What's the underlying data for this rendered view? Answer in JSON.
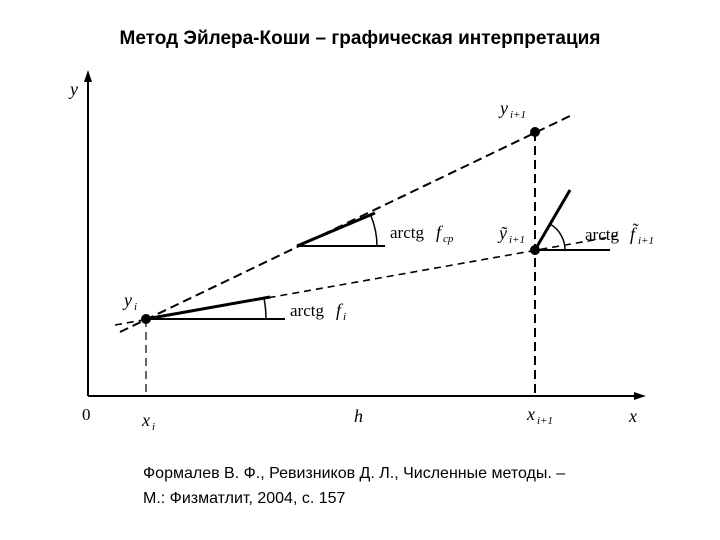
{
  "title": "Метод Эйлера-Коши – графическая интерпретация",
  "axes": {
    "y": "y",
    "x": "x",
    "origin": "0"
  },
  "labels": {
    "x_i": {
      "base": "x",
      "sub": "i"
    },
    "h": "h",
    "x_next": {
      "base": "x",
      "sub": "i+1"
    },
    "y_i": {
      "base": "y",
      "sub": "i"
    },
    "y_next": {
      "base": "y",
      "sub": "i+1"
    },
    "y_tilde": {
      "base": "ỹ",
      "sub": "i+1"
    },
    "slope_i": {
      "prefix": "arctg",
      "base": "f",
      "sub": "i"
    },
    "slope_avg": {
      "prefix": "arctg",
      "base": "f",
      "sub": "ср"
    },
    "slope_tilde": {
      "prefix": "arctg",
      "base": "f̃",
      "sub": "i+1"
    }
  },
  "citation": [
    "Формалев В. Ф., Ревизников Д. Л., Численные методы. –",
    "М.: Физматлит, 2004, с. 157"
  ]
}
